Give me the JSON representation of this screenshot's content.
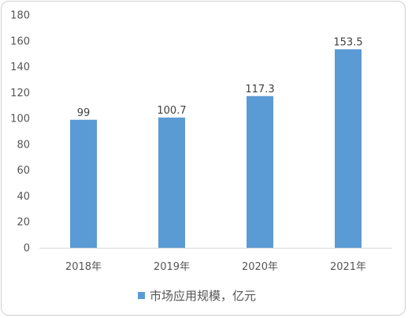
{
  "chart_data": {
    "type": "bar",
    "categories": [
      "2018年",
      "2019年",
      "2020年",
      "2021年"
    ],
    "series": [
      {
        "name": "市场应用规模，亿元",
        "values": [
          99,
          100.7,
          117.3,
          153.5
        ],
        "color": "#5b9bd5"
      }
    ],
    "data_labels": [
      "99",
      "100.7",
      "117.3",
      "153.5"
    ],
    "ylim": [
      0,
      180
    ],
    "yticks": [
      0,
      20,
      40,
      60,
      80,
      100,
      120,
      140,
      160,
      180
    ],
    "grid": false,
    "legend_position": "bottom"
  }
}
